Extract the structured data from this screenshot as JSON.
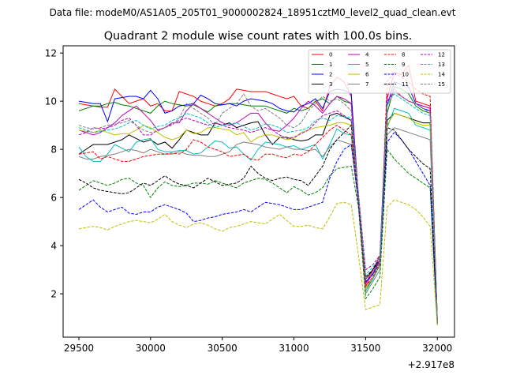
{
  "chart_data": {
    "type": "line",
    "suptitle": "Data file: modeM0/AS1A05_205T01_9000002824_18951cztM0_level2_quad_clean.evt",
    "title": "Quadrant 2 module wise count rates with 100.0s bins.",
    "xlabel": "",
    "ylabel": "",
    "x_offset_label": "+2.917e8",
    "x_ticks": [
      29500,
      30000,
      30500,
      31000,
      31500,
      32000
    ],
    "y_ticks": [
      2,
      4,
      6,
      8,
      10,
      12
    ],
    "xlim": [
      29390,
      32120
    ],
    "ylim": [
      0.2,
      12.3
    ],
    "grid": false,
    "legend_placement": "top-right",
    "legend_columns": 4,
    "x": [
      29500,
      29550,
      29600,
      29650,
      29700,
      29750,
      29800,
      29850,
      29900,
      29950,
      30000,
      30050,
      30100,
      30150,
      30200,
      30250,
      30300,
      30350,
      30400,
      30450,
      30500,
      30550,
      30600,
      30650,
      30700,
      30750,
      30800,
      30850,
      30900,
      30950,
      31000,
      31050,
      31100,
      31150,
      31200,
      31250,
      31300,
      31350,
      31400,
      31450,
      31500,
      31550,
      31600,
      31650,
      31700,
      31750,
      31800,
      31850,
      31900,
      31950,
      32000
    ],
    "series": [
      {
        "name": "0",
        "color": "#ff0000",
        "dash": "solid",
        "values": [
          9.9,
          9.85,
          9.8,
          9.75,
          9.75,
          10.5,
          10.2,
          9.9,
          10.0,
          10.1,
          9.8,
          9.9,
          9.6,
          9.6,
          10.4,
          10.3,
          10.2,
          10.0,
          9.9,
          9.8,
          9.9,
          10.1,
          10.5,
          10.45,
          10.4,
          10.4,
          10.4,
          10.3,
          10.2,
          10.1,
          10.2,
          9.8,
          9.7,
          10.0,
          9.6,
          10.6,
          11.0,
          10.8,
          10.2,
          6.0,
          2.4,
          3.0,
          3.6,
          10.1,
          11.2,
          11.1,
          11.5,
          10.0,
          9.9,
          9.8,
          1.0
        ]
      },
      {
        "name": "1",
        "color": "#008000",
        "dash": "solid",
        "values": [
          9.6,
          9.7,
          9.8,
          9.8,
          9.9,
          9.95,
          9.85,
          9.8,
          9.7,
          9.6,
          9.5,
          9.8,
          10.0,
          9.9,
          9.85,
          9.8,
          9.85,
          9.7,
          9.55,
          9.8,
          9.85,
          9.9,
          9.9,
          9.85,
          9.8,
          9.8,
          9.8,
          9.7,
          9.6,
          9.5,
          9.7,
          9.6,
          9.7,
          10.0,
          10.1,
          9.9,
          10.2,
          10.0,
          9.9,
          6.0,
          2.2,
          2.6,
          3.2,
          9.5,
          10.6,
          10.5,
          10.3,
          9.8,
          9.6,
          9.5,
          0.9
        ]
      },
      {
        "name": "2",
        "color": "#0000ff",
        "dash": "solid",
        "values": [
          10.0,
          9.95,
          9.9,
          9.9,
          9.15,
          10.1,
          10.15,
          10.2,
          10.2,
          10.1,
          10.45,
          10.1,
          9.5,
          9.6,
          9.8,
          9.85,
          9.9,
          10.25,
          10.1,
          9.9,
          9.85,
          9.9,
          9.8,
          10.0,
          10.1,
          10.05,
          10.0,
          9.9,
          9.7,
          9.6,
          9.55,
          9.8,
          9.9,
          10.1,
          9.7,
          10.4,
          10.5,
          10.45,
          10.3,
          6.0,
          2.5,
          2.8,
          3.4,
          9.8,
          10.8,
          10.7,
          10.6,
          9.9,
          9.7,
          9.6,
          0.9
        ]
      },
      {
        "name": "3",
        "color": "#000000",
        "dash": "solid",
        "values": [
          7.8,
          8.0,
          8.2,
          8.2,
          8.2,
          8.3,
          8.4,
          8.6,
          8.45,
          8.3,
          8.4,
          8.2,
          8.3,
          8.05,
          8.4,
          8.8,
          8.7,
          8.6,
          8.6,
          9.1,
          9.0,
          9.1,
          8.9,
          9.0,
          9.1,
          9.15,
          8.6,
          8.2,
          8.5,
          8.5,
          8.4,
          8.35,
          8.4,
          8.6,
          8.6,
          9.4,
          9.5,
          9.35,
          9.2,
          6.0,
          2.6,
          3.0,
          3.4,
          9.2,
          9.5,
          9.4,
          9.3,
          9.2,
          9.1,
          9.1,
          0.8
        ]
      },
      {
        "name": "4",
        "color": "#bf00bf",
        "dash": "solid",
        "values": [
          8.8,
          8.7,
          8.6,
          8.7,
          8.9,
          9.1,
          9.4,
          9.6,
          9.8,
          9.5,
          9.2,
          8.8,
          8.9,
          9.1,
          9.1,
          9.6,
          9.9,
          9.7,
          9.5,
          9.3,
          9.1,
          9.0,
          9.1,
          9.3,
          9.5,
          9.5,
          9.1,
          8.8,
          8.75,
          9.0,
          9.3,
          9.7,
          10.0,
          9.8,
          9.5,
          9.9,
          10.2,
          10.1,
          9.9,
          6.0,
          2.3,
          2.9,
          3.4,
          10.0,
          10.4,
          10.2,
          10.0,
          9.9,
          9.8,
          9.7,
          0.9
        ]
      },
      {
        "name": "5",
        "color": "#00bfbf",
        "dash": "solid",
        "values": [
          8.1,
          7.7,
          7.5,
          7.5,
          7.8,
          8.2,
          8.05,
          7.9,
          8.3,
          8.4,
          8.45,
          8.0,
          7.9,
          7.9,
          7.95,
          7.95,
          7.8,
          7.85,
          8.1,
          8.35,
          8.3,
          8.05,
          8.1,
          7.8,
          7.55,
          8.0,
          8.3,
          8.25,
          8.2,
          8.1,
          8.15,
          8.0,
          8.1,
          8.2,
          7.6,
          8.2,
          8.85,
          8.65,
          8.6,
          5.9,
          2.1,
          2.6,
          3.2,
          8.9,
          9.7,
          9.6,
          9.5,
          9.0,
          8.9,
          8.8,
          0.8
        ]
      },
      {
        "name": "6",
        "color": "#bfbf00",
        "dash": "solid",
        "values": [
          8.8,
          8.75,
          8.7,
          8.8,
          8.7,
          8.6,
          8.65,
          8.65,
          8.8,
          9.0,
          8.9,
          8.7,
          8.5,
          8.4,
          8.5,
          8.8,
          8.65,
          8.7,
          8.9,
          8.9,
          8.85,
          8.8,
          8.6,
          8.7,
          8.3,
          8.5,
          8.6,
          8.6,
          8.5,
          8.4,
          8.45,
          8.7,
          8.8,
          8.9,
          8.95,
          9.0,
          9.1,
          9.1,
          9.0,
          6.0,
          2.2,
          2.7,
          3.3,
          9.0,
          9.5,
          9.4,
          9.3,
          9.1,
          9.0,
          9.0,
          0.8
        ]
      },
      {
        "name": "7",
        "color": "#808080",
        "dash": "solid",
        "values": [
          7.7,
          7.6,
          7.6,
          7.7,
          7.75,
          7.8,
          7.9,
          8.0,
          7.95,
          7.85,
          8.0,
          7.9,
          7.8,
          7.8,
          7.9,
          7.8,
          7.75,
          7.75,
          7.7,
          7.7,
          7.8,
          7.9,
          8.2,
          8.3,
          8.25,
          8.2,
          8.1,
          8.05,
          8.0,
          8.1,
          8.0,
          8.0,
          7.95,
          8.0,
          7.7,
          8.1,
          8.4,
          8.3,
          8.2,
          5.8,
          2.0,
          2.5,
          3.0,
          8.6,
          8.9,
          8.8,
          8.7,
          8.6,
          8.5,
          8.4,
          0.8
        ]
      },
      {
        "name": "8",
        "color": "#ff0000",
        "dash": "dashed",
        "values": [
          7.8,
          7.85,
          7.9,
          7.6,
          7.7,
          7.6,
          7.5,
          7.5,
          7.6,
          7.7,
          7.75,
          7.8,
          7.8,
          7.85,
          7.8,
          8.0,
          8.4,
          8.3,
          8.1,
          8.0,
          7.9,
          7.7,
          7.75,
          7.8,
          7.6,
          7.55,
          7.8,
          7.8,
          7.7,
          7.65,
          7.8,
          7.75,
          7.9,
          8.2,
          8.5,
          8.8,
          9.0,
          8.8,
          8.6,
          5.7,
          2.3,
          2.7,
          3.2,
          10.8,
          11.2,
          11.0,
          10.8,
          10.5,
          10.3,
          10.2,
          0.9
        ]
      },
      {
        "name": "9",
        "color": "#008000",
        "dash": "dashed",
        "values": [
          6.3,
          6.5,
          6.7,
          6.6,
          6.5,
          6.6,
          6.75,
          6.8,
          6.6,
          6.5,
          6.0,
          6.4,
          6.65,
          6.5,
          6.45,
          6.5,
          6.6,
          6.6,
          6.55,
          6.7,
          6.6,
          6.5,
          6.4,
          6.6,
          6.7,
          6.8,
          6.75,
          6.6,
          6.4,
          6.2,
          6.45,
          6.3,
          6.1,
          6.2,
          6.4,
          6.9,
          7.2,
          7.25,
          7.3,
          5.6,
          1.8,
          2.2,
          2.7,
          8.0,
          7.6,
          7.3,
          7.0,
          6.8,
          6.6,
          6.4,
          0.7
        ]
      },
      {
        "name": "10",
        "color": "#0000ff",
        "dash": "dashed",
        "values": [
          5.5,
          5.7,
          5.9,
          5.6,
          5.4,
          5.5,
          5.6,
          5.35,
          5.3,
          5.4,
          5.4,
          5.6,
          5.7,
          5.6,
          5.5,
          5.35,
          5.0,
          5.05,
          5.15,
          5.2,
          5.3,
          5.35,
          5.4,
          5.5,
          5.4,
          5.6,
          5.8,
          5.75,
          5.7,
          5.6,
          5.5,
          5.5,
          5.6,
          5.7,
          5.8,
          6.8,
          7.5,
          8.0,
          8.2,
          5.8,
          2.5,
          2.8,
          3.3,
          8.3,
          8.7,
          8.4,
          8.0,
          7.5,
          7.0,
          6.5,
          0.8
        ]
      },
      {
        "name": "11",
        "color": "#000000",
        "dash": "dashed",
        "values": [
          6.75,
          6.6,
          6.4,
          6.3,
          6.25,
          6.2,
          6.15,
          6.2,
          6.4,
          6.6,
          6.5,
          6.7,
          6.9,
          6.7,
          6.55,
          6.5,
          6.4,
          6.6,
          6.8,
          6.65,
          6.5,
          6.55,
          6.6,
          6.8,
          7.3,
          7.0,
          6.8,
          6.7,
          6.8,
          6.85,
          6.75,
          6.7,
          6.5,
          6.9,
          7.3,
          8.0,
          8.4,
          8.7,
          9.0,
          6.0,
          2.7,
          3.0,
          3.5,
          8.9,
          8.8,
          8.4,
          8.0,
          7.7,
          7.4,
          7.2,
          0.8
        ]
      },
      {
        "name": "12",
        "color": "#bf00bf",
        "dash": "dashed",
        "values": [
          8.6,
          8.7,
          8.9,
          8.85,
          8.9,
          9.0,
          9.2,
          9.3,
          9.0,
          8.6,
          8.6,
          8.8,
          8.9,
          9.05,
          9.2,
          9.3,
          9.2,
          9.1,
          9.0,
          9.1,
          9.0,
          8.9,
          8.85,
          8.8,
          8.7,
          8.8,
          8.9,
          8.8,
          8.6,
          8.45,
          8.5,
          8.65,
          8.8,
          9.1,
          9.4,
          9.5,
          9.6,
          9.4,
          9.2,
          6.2,
          3.0,
          3.2,
          3.6,
          10.3,
          10.5,
          10.2,
          10.0,
          9.9,
          9.8,
          9.7,
          0.9
        ]
      },
      {
        "name": "13",
        "color": "#00bfbf",
        "dash": "dashed",
        "values": [
          8.9,
          8.8,
          8.7,
          8.75,
          8.8,
          8.85,
          8.95,
          9.1,
          9.2,
          9.0,
          8.85,
          8.95,
          9.0,
          9.2,
          9.3,
          9.5,
          9.4,
          9.3,
          9.1,
          8.9,
          9.0,
          9.05,
          9.1,
          8.95,
          8.8,
          8.9,
          9.05,
          9.0,
          8.9,
          8.7,
          8.75,
          8.8,
          8.9,
          9.2,
          9.3,
          9.2,
          9.4,
          9.35,
          9.3,
          6.1,
          2.8,
          3.1,
          3.5,
          9.9,
          10.3,
          10.1,
          9.9,
          9.7,
          9.5,
          9.4,
          0.9
        ]
      },
      {
        "name": "14",
        "color": "#bfbf00",
        "dash": "dashed",
        "values": [
          4.7,
          4.75,
          4.8,
          4.75,
          4.65,
          4.8,
          4.9,
          5.0,
          5.05,
          5.0,
          4.95,
          5.1,
          5.3,
          5.0,
          4.85,
          4.75,
          4.9,
          4.95,
          4.85,
          4.7,
          4.6,
          4.75,
          4.8,
          4.9,
          5.0,
          4.95,
          4.9,
          5.1,
          5.3,
          5.05,
          4.8,
          4.8,
          4.85,
          4.75,
          4.7,
          5.2,
          5.75,
          5.8,
          5.7,
          3.6,
          1.35,
          1.45,
          1.55,
          5.6,
          5.9,
          5.8,
          5.7,
          5.5,
          5.2,
          4.8,
          0.7
        ]
      },
      {
        "name": "15",
        "color": "#808080",
        "dash": "dashed",
        "values": [
          9.0,
          8.9,
          8.85,
          8.9,
          9.0,
          9.05,
          9.1,
          9.2,
          9.0,
          8.8,
          8.7,
          8.75,
          8.9,
          9.0,
          9.3,
          9.9,
          9.7,
          9.5,
          9.3,
          9.0,
          9.5,
          9.7,
          9.9,
          10.3,
          9.8,
          9.6,
          9.7,
          9.5,
          9.3,
          9.0,
          8.9,
          9.1,
          9.6,
          9.9,
          10.2,
          10.0,
          10.1,
          9.9,
          9.6,
          6.1,
          2.6,
          2.9,
          3.3,
          9.8,
          10.4,
          10.2,
          10.0,
          9.9,
          9.7,
          9.5,
          0.8
        ]
      }
    ]
  }
}
